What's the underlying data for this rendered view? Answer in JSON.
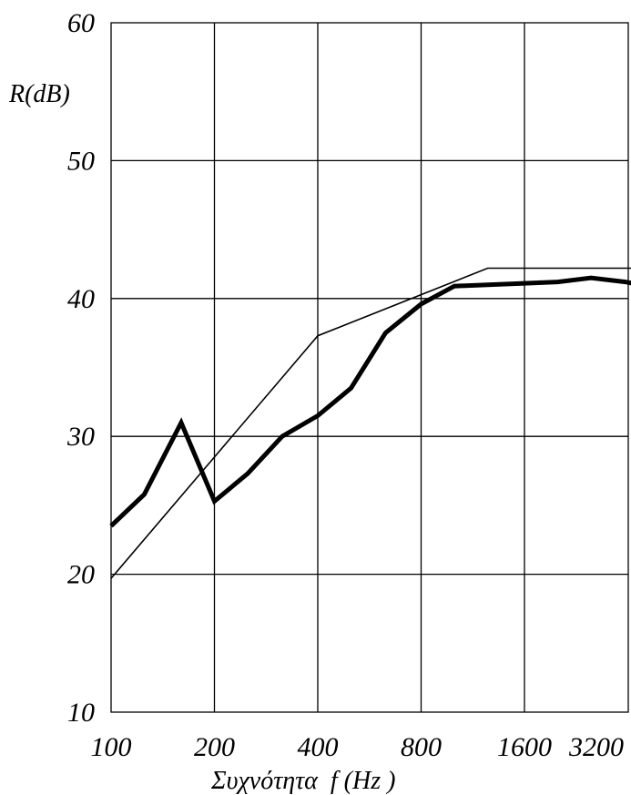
{
  "chart_data": {
    "type": "line",
    "xlabel": "Συχνότητα  f (Hz )",
    "ylabel": "R(dB)",
    "x_scale": "log2",
    "xlim": [
      100,
      3800
    ],
    "ylim": [
      10,
      60
    ],
    "x_ticks": [
      100,
      200,
      400,
      800,
      1600,
      3200
    ],
    "x_tick_labels": [
      "100",
      "200",
      "400",
      "800",
      "1600",
      "3200"
    ],
    "y_ticks": [
      10,
      20,
      30,
      40,
      50,
      60
    ],
    "y_tick_labels": [
      "10",
      "20",
      "30",
      "40",
      "50",
      "60"
    ],
    "grid": true,
    "series": [
      {
        "style": "thick",
        "color": "#000000",
        "x": [
          100,
          125,
          160,
          200,
          250,
          315,
          400,
          500,
          630,
          800,
          1000,
          1250,
          1600,
          2000,
          2500,
          3150,
          3800
        ],
        "y": [
          23.5,
          25.8,
          31.0,
          25.3,
          27.3,
          30.0,
          31.5,
          33.5,
          37.5,
          39.6,
          40.9,
          41.0,
          41.1,
          41.2,
          41.5,
          41.2,
          40.8
        ]
      },
      {
        "style": "thin",
        "color": "#000000",
        "x": [
          100,
          400,
          1250,
          3800
        ],
        "y": [
          19.7,
          37.3,
          42.2,
          42.2
        ]
      }
    ]
  }
}
